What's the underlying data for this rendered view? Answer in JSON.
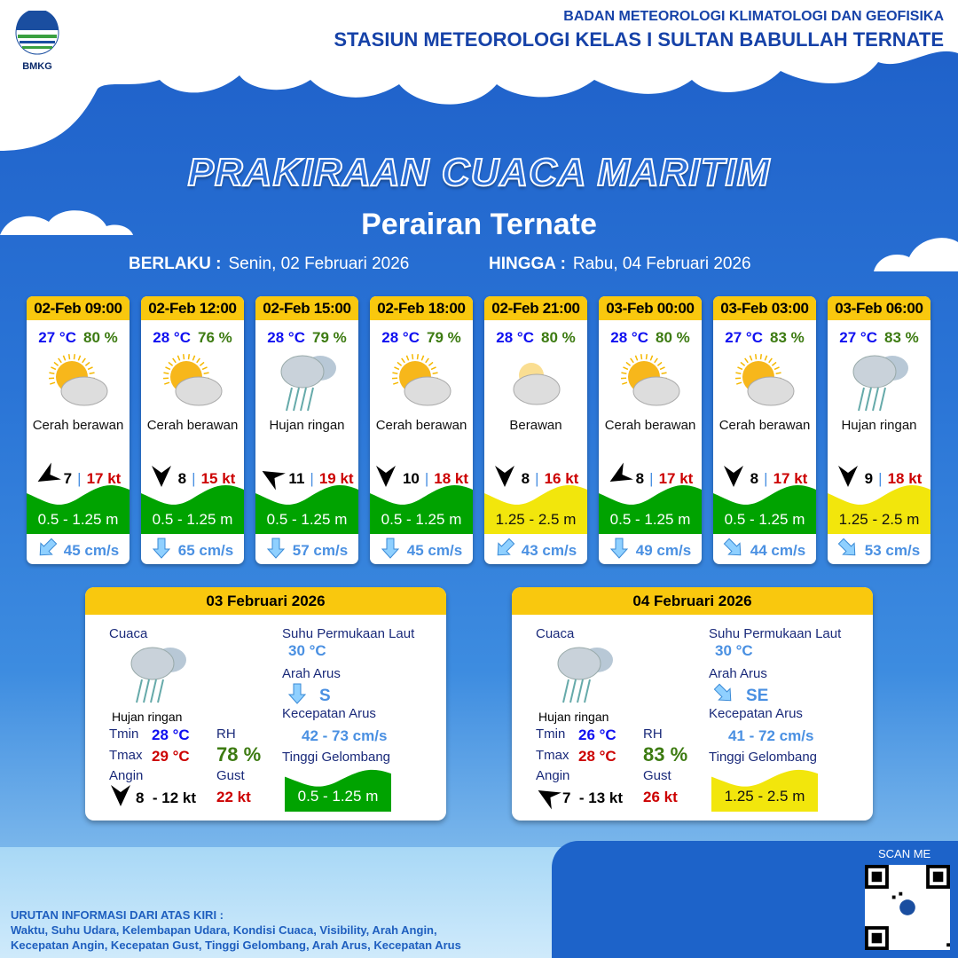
{
  "header": {
    "logo_text": "BMKG",
    "org_line1": "BADAN METEOROLOGI KLIMATOLOGI DAN GEOFISIKA",
    "org_line2": "STASIUN METEOROLOGI KELAS I SULTAN BABULLAH TERNATE"
  },
  "title": "PRAKIRAAN CUACA MARITIM",
  "subtitle": "Perairan Ternate",
  "period": {
    "from_label": "BERLAKU :",
    "from": "Senin, 02 Februari 2026",
    "to_label": "HINGGA :",
    "to": "Rabu, 04 Februari 2026"
  },
  "colors": {
    "wave_green": "#00a300",
    "wave_yellow": "#f2e60c",
    "header_yellow": "#f9c80e",
    "temp_blue": "#1010f0",
    "rh_green": "#3d7b12",
    "gust_red": "#cc0000",
    "current_blue": "#4a90e2"
  },
  "forecasts": [
    {
      "time": "02-Feb 09:00",
      "temp": "27 °C",
      "rh": "80 %",
      "icon": "partly-cloudy-icon",
      "condition": "Cerah berawan",
      "wind_dir_deg": 60,
      "wind": "7",
      "gust": "17 kt",
      "wave": "0.5 - 1.25 m",
      "wave_level": "green",
      "current_dir": "SW",
      "current": "45 cm/s"
    },
    {
      "time": "02-Feb 12:00",
      "temp": "28 °C",
      "rh": "76 %",
      "icon": "partly-cloudy-icon",
      "condition": "Cerah berawan",
      "wind_dir_deg": 0,
      "wind": "8",
      "gust": "15 kt",
      "wave": "0.5 - 1.25 m",
      "wave_level": "green",
      "current_dir": "S",
      "current": "65 cm/s"
    },
    {
      "time": "02-Feb 15:00",
      "temp": "28 °C",
      "rh": "79 %",
      "icon": "light-rain-icon",
      "condition": "Hujan ringan",
      "wind_dir_deg": 120,
      "wind": "11",
      "gust": "19 kt",
      "wave": "0.5 - 1.25 m",
      "wave_level": "green",
      "current_dir": "S",
      "current": "57 cm/s"
    },
    {
      "time": "02-Feb 18:00",
      "temp": "28 °C",
      "rh": "79 %",
      "icon": "partly-cloudy-icon",
      "condition": "Cerah berawan",
      "wind_dir_deg": 0,
      "wind": "10",
      "gust": "18 kt",
      "wave": "0.5 - 1.25 m",
      "wave_level": "green",
      "current_dir": "S",
      "current": "45 cm/s"
    },
    {
      "time": "02-Feb 21:00",
      "temp": "28 °C",
      "rh": "80 %",
      "icon": "cloudy-icon",
      "condition": "Berawan",
      "wind_dir_deg": 0,
      "wind": "8",
      "gust": "16 kt",
      "wave": "1.25 - 2.5 m",
      "wave_level": "yellow",
      "current_dir": "SW",
      "current": "43 cm/s"
    },
    {
      "time": "03-Feb 00:00",
      "temp": "28 °C",
      "rh": "80 %",
      "icon": "partly-cloudy-icon",
      "condition": "Cerah berawan",
      "wind_dir_deg": 60,
      "wind": "8",
      "gust": "17 kt",
      "wave": "0.5 - 1.25 m",
      "wave_level": "green",
      "current_dir": "S",
      "current": "49 cm/s"
    },
    {
      "time": "03-Feb 03:00",
      "temp": "27 °C",
      "rh": "83 %",
      "icon": "partly-cloudy-icon",
      "condition": "Cerah berawan",
      "wind_dir_deg": 0,
      "wind": "8",
      "gust": "17 kt",
      "wave": "0.5 - 1.25 m",
      "wave_level": "green",
      "current_dir": "SE",
      "current": "44 cm/s"
    },
    {
      "time": "03-Feb 06:00",
      "temp": "27 °C",
      "rh": "83 %",
      "icon": "light-rain-icon",
      "condition": "Hujan ringan",
      "wind_dir_deg": 0,
      "wind": "9",
      "gust": "18 kt",
      "wave": "1.25 - 2.5 m",
      "wave_level": "yellow",
      "current_dir": "SE",
      "current": "53 cm/s"
    }
  ],
  "daily": [
    {
      "date": "03 Februari 2026",
      "cuaca_label": "Cuaca",
      "condition": "Hujan ringan",
      "tmin_label": "Tmin",
      "tmin": "28 °C",
      "tmax_label": "Tmax",
      "tmax": "29 °C",
      "rh_label": "RH",
      "rh": "78 %",
      "angin_label": "Angin",
      "wind_dir_deg": 0,
      "wind": "8  - 12 kt",
      "gust_label": "Gust",
      "gust": "22 kt",
      "sst_label": "Suhu Permukaan Laut",
      "sst": "30 °C",
      "arah_label": "Arah Arus",
      "arah": "S",
      "kec_label": "Kecepatan Arus",
      "kec": "42 - 73 cm/s",
      "tg_label": "Tinggi Gelombang",
      "wave": "0.5 - 1.25 m",
      "wave_level": "green"
    },
    {
      "date": "04 Februari 2026",
      "cuaca_label": "Cuaca",
      "condition": "Hujan ringan",
      "tmin_label": "Tmin",
      "tmin": "26 °C",
      "tmax_label": "Tmax",
      "tmax": "28 °C",
      "rh_label": "RH",
      "rh": "83 %",
      "angin_label": "Angin",
      "wind_dir_deg": 120,
      "wind": "7  - 13 kt",
      "gust_label": "Gust",
      "gust": "26 kt",
      "sst_label": "Suhu Permukaan Laut",
      "sst": "30 °C",
      "arah_label": "Arah Arus",
      "arah": "SE",
      "kec_label": "Kecepatan Arus",
      "kec": "41 - 72 cm/s",
      "tg_label": "Tinggi Gelombang",
      "wave": "1.25 - 2.5 m",
      "wave_level": "yellow"
    }
  ],
  "footer": {
    "heading": "URUTAN INFORMASI DARI ATAS KIRI :",
    "line1": "Waktu, Suhu Udara, Kelembapan Udara, Kondisi Cuaca, Visibility, Arah Angin,",
    "line2": "Kecepatan Angin, Kecepatan Gust, Tinggi Gelombang, Arah Arus, Kecepatan Arus",
    "scan": "SCAN ME"
  }
}
